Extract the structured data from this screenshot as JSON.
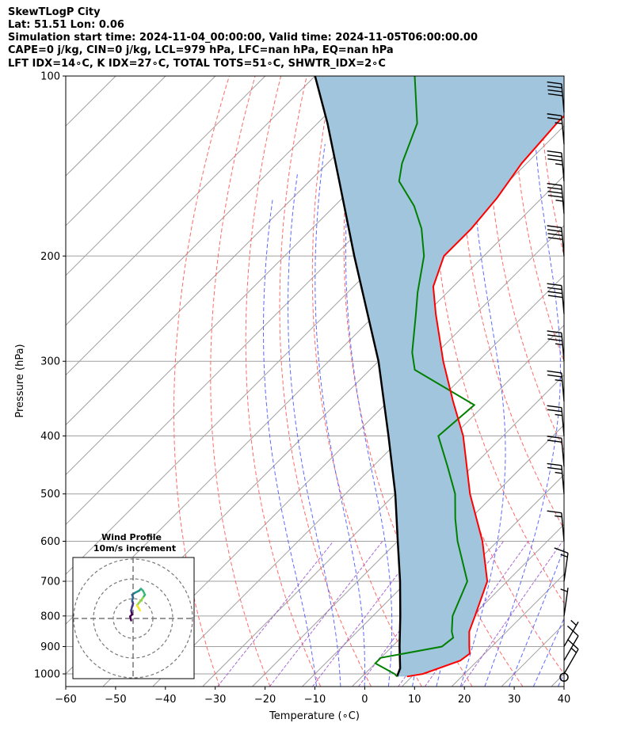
{
  "header": {
    "line1": "SkewTLogP City",
    "line2": "Lat: 51.51   Lon: 0.06",
    "line3": "Simulation start time: 2024-11-04_00:00:00, Valid time: 2024-11-05T06:00:00.00",
    "line4": "CAPE=0 j/kg, CIN=0 j/kg, LCL=979 hPa, LFC=nan hPa, EQ=nan hPa",
    "line5": "LFT IDX=14∘C, K IDX=27∘C, TOTAL TOTS=51∘C, SHWTR_IDX=2∘C"
  },
  "chart_data": {
    "type": "skew-t log-p",
    "title": "SkewTLogP City",
    "xlabel": "Temperature (∘C)",
    "ylabel": "Pressure (hPa)",
    "xlim": [
      -60,
      40
    ],
    "ylim": [
      1050,
      100
    ],
    "x_ticks": [
      "−60",
      "−50",
      "−40",
      "−30",
      "−20",
      "−10",
      "0",
      "10",
      "20",
      "30",
      "40"
    ],
    "y_ticks": [
      {
        "p": 1000,
        "label": "1000"
      },
      {
        "p": 900,
        "label": "900"
      },
      {
        "p": 800,
        "label": "800"
      },
      {
        "p": 700,
        "label": "700"
      },
      {
        "p": 600,
        "label": "600"
      },
      {
        "p": 500,
        "label": "500"
      },
      {
        "p": 400,
        "label": "400"
      },
      {
        "p": 300,
        "label": "300"
      },
      {
        "p": 200,
        "label": "200"
      },
      {
        "p": 100,
        "label": "100"
      }
    ],
    "temperature": {
      "name": "Temperature",
      "color": "#ff0000",
      "points": [
        [
          1010,
          9
        ],
        [
          1000,
          11.7
        ],
        [
          950,
          16.5
        ],
        [
          925,
          17
        ],
        [
          900,
          15.5
        ],
        [
          850,
          12.5
        ],
        [
          800,
          10.5
        ],
        [
          700,
          6
        ],
        [
          600,
          -3
        ],
        [
          500,
          -15
        ],
        [
          400,
          -28
        ],
        [
          350,
          -37
        ],
        [
          300,
          -47
        ],
        [
          250,
          -58
        ],
        [
          225,
          -64
        ],
        [
          200,
          -68
        ],
        [
          180,
          -68
        ],
        [
          160,
          -69
        ],
        [
          140,
          -71
        ],
        [
          120,
          -72
        ],
        [
          110,
          -72
        ],
        [
          100,
          -72
        ]
      ]
    },
    "dewpoint": {
      "name": "Dewpoint",
      "color": "#008000",
      "points": [
        [
          1010,
          7
        ],
        [
          1000,
          6
        ],
        [
          960,
          0
        ],
        [
          940,
          0
        ],
        [
          900,
          10
        ],
        [
          870,
          10.5
        ],
        [
          850,
          9
        ],
        [
          800,
          6
        ],
        [
          700,
          2
        ],
        [
          600,
          -8
        ],
        [
          550,
          -13
        ],
        [
          500,
          -18
        ],
        [
          450,
          -25
        ],
        [
          400,
          -33
        ],
        [
          355,
          -32
        ],
        [
          310,
          -51
        ],
        [
          290,
          -55
        ],
        [
          250,
          -62
        ],
        [
          230,
          -66
        ],
        [
          200,
          -72
        ],
        [
          180,
          -78
        ],
        [
          165,
          -84
        ],
        [
          150,
          -92
        ],
        [
          140,
          -95
        ],
        [
          120,
          -100
        ],
        [
          100,
          -110
        ]
      ]
    },
    "parcel": {
      "name": "Parcel profile",
      "color": "#000000",
      "points": [
        [
          1010,
          7
        ],
        [
          979,
          6
        ],
        [
          900,
          1.5
        ],
        [
          800,
          -4.5
        ],
        [
          700,
          -11.5
        ],
        [
          600,
          -20
        ],
        [
          500,
          -30
        ],
        [
          400,
          -43
        ],
        [
          300,
          -60
        ],
        [
          200,
          -86
        ],
        [
          150,
          -104
        ],
        [
          120,
          -118
        ],
        [
          100,
          -130
        ]
      ]
    },
    "dry_adiabats_C": [
      -30,
      -20,
      -10,
      0,
      10,
      20,
      30,
      40,
      50,
      60,
      70,
      80,
      90,
      100,
      110,
      120
    ],
    "moist_adiabats_C": [
      -10,
      -5,
      0,
      5,
      10,
      15,
      20,
      25,
      30,
      35,
      40
    ],
    "mixing_ratio_lines": [
      0.4,
      1,
      2,
      4,
      7,
      10,
      16
    ],
    "wind_barbs": [
      {
        "p": 1013,
        "ws": 0
      },
      {
        "p": 1000,
        "ws": 15
      },
      {
        "p": 950,
        "ws": 10
      },
      {
        "p": 900,
        "ws": 5
      },
      {
        "p": 800,
        "ws": 7
      },
      {
        "p": 700,
        "ws": 15
      },
      {
        "p": 600,
        "ws": 15
      },
      {
        "p": 500,
        "ws": 25
      },
      {
        "p": 450,
        "ws": 20
      },
      {
        "p": 400,
        "ws": 25
      },
      {
        "p": 350,
        "ws": 25
      },
      {
        "p": 300,
        "ws": 35
      },
      {
        "p": 250,
        "ws": 40
      },
      {
        "p": 200,
        "ws": 40
      },
      {
        "p": 170,
        "ws": 45
      },
      {
        "p": 150,
        "ws": 35
      },
      {
        "p": 130,
        "ws": 25
      },
      {
        "p": 115,
        "ws": 40
      }
    ],
    "hodograph": {
      "title": "Wind Profile",
      "subtitle": "10m/s increment",
      "ring_step_ms": 10,
      "rings": 3,
      "points": [
        [
          -1,
          -1
        ],
        [
          -1.5,
          1
        ],
        [
          -0.5,
          2
        ],
        [
          -1,
          4
        ],
        [
          -0.5,
          6
        ],
        [
          0,
          7.5
        ],
        [
          -0.5,
          9
        ],
        [
          0,
          10.5
        ],
        [
          -0.5,
          12
        ],
        [
          1,
          13
        ],
        [
          3,
          14
        ],
        [
          4,
          15
        ],
        [
          5,
          14
        ],
        [
          6,
          12
        ],
        [
          5,
          10.5
        ],
        [
          4,
          9
        ],
        [
          3,
          8
        ],
        [
          2,
          6.5
        ],
        [
          3,
          5
        ],
        [
          3.5,
          4
        ]
      ]
    },
    "colors": {
      "cape_fill": "#a2c5de",
      "dry_adiabat": "#ff5a5a",
      "moist_adiabat": "#4a5aff",
      "isotherm": "#a0a0a0",
      "mixing_ratio": "#9b4fc9"
    }
  }
}
